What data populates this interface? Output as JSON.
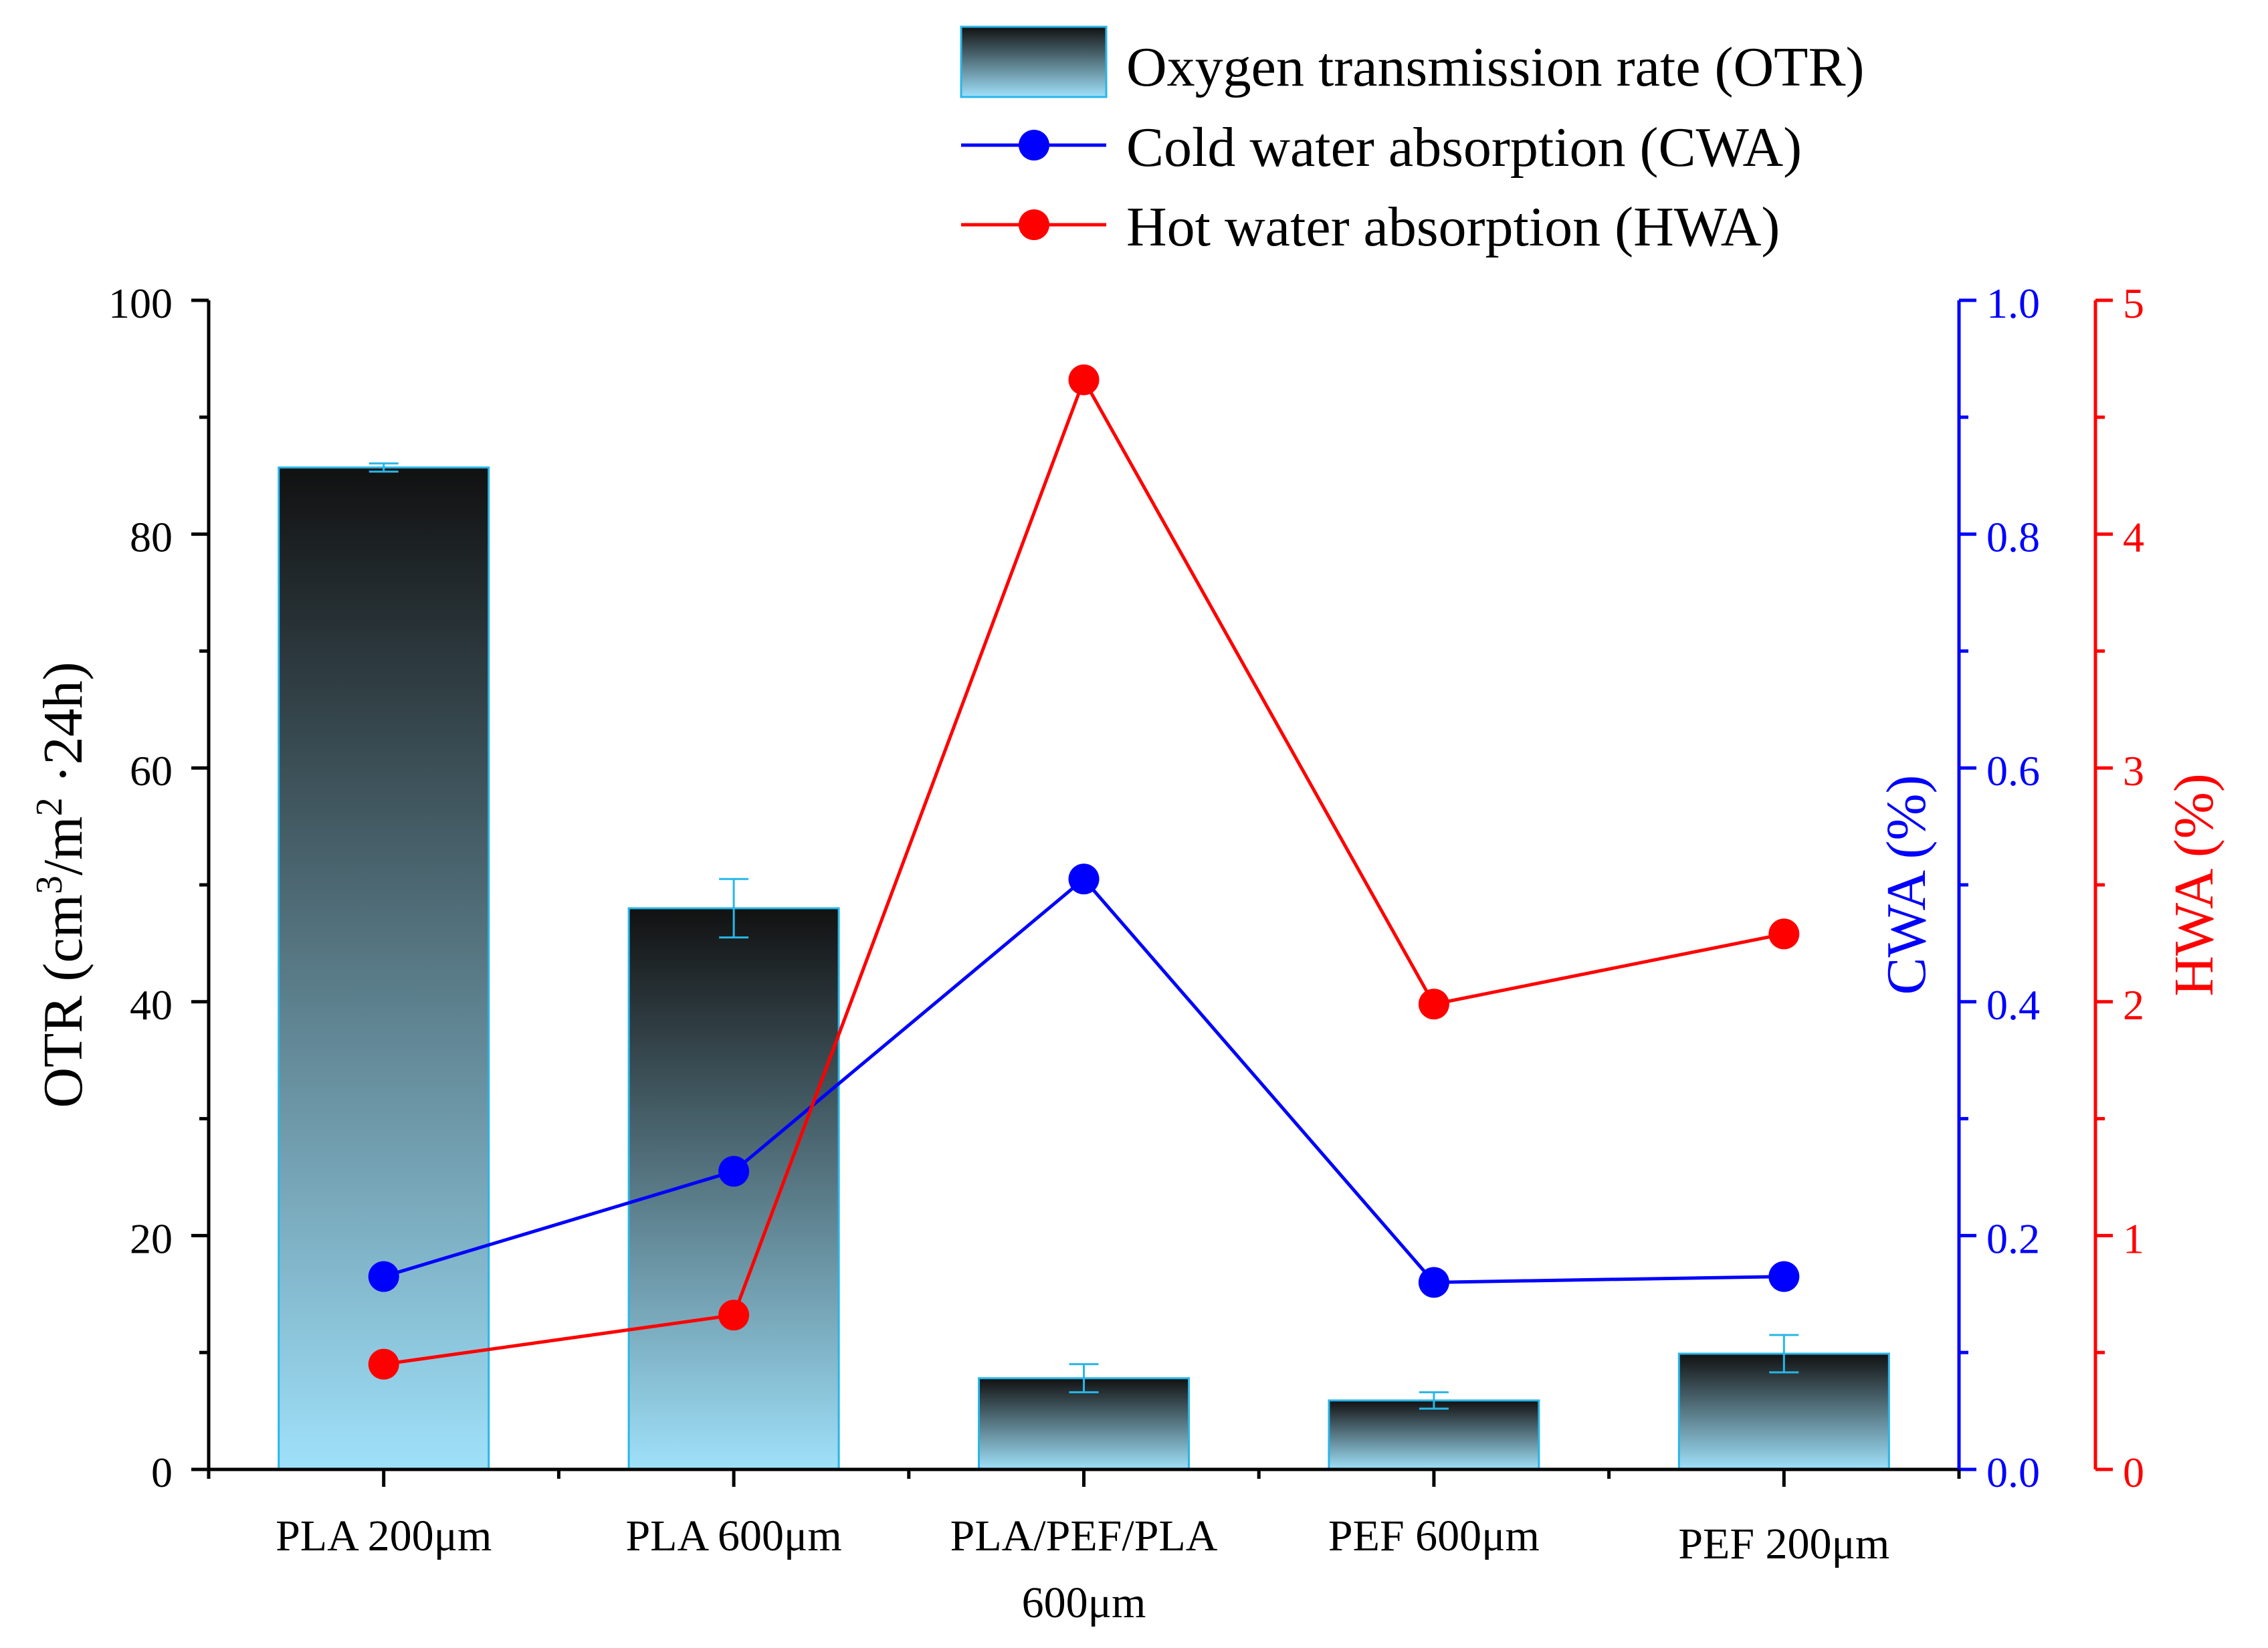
{
  "chart_data": {
    "type": "bar",
    "categories": [
      "PLA 200μm",
      "PLA 600μm",
      "PLA/PEF/PLA 600μm",
      "PEF 600μm",
      "PEF 200μm"
    ],
    "category_lines": [
      [
        "PLA 200μm"
      ],
      [
        "PLA 600μm"
      ],
      [
        "PLA/PEF/PLA",
        "600μm"
      ],
      [
        "PEF 600μm"
      ],
      [
        "PEF 200μm"
      ]
    ],
    "series": [
      {
        "name": "Oxygen transmission rate (OTR)",
        "type": "bar",
        "axis": "left",
        "values": [
          85.7,
          48.0,
          7.8,
          5.9,
          9.9
        ],
        "error": [
          0.35,
          2.5,
          1.2,
          0.7,
          1.6
        ]
      },
      {
        "name": "Cold water absorption (CWA)",
        "type": "line",
        "axis": "right1",
        "values": [
          0.165,
          0.255,
          0.505,
          0.16,
          0.165
        ]
      },
      {
        "name": "Hot water absorption (HWA)",
        "type": "line",
        "axis": "right2",
        "values": [
          0.45,
          0.66,
          4.66,
          1.99,
          2.29
        ]
      }
    ],
    "axes": {
      "left": {
        "label_main": "OTR (cm",
        "label_sup1": "3",
        "label_mid": "/m",
        "label_sup2": "2",
        "label_end": " ·24h)",
        "min": 0,
        "max": 100,
        "ticks": [
          "0",
          "20",
          "40",
          "60",
          "80",
          "100"
        ]
      },
      "right1": {
        "label": "CWA (%)",
        "min": 0,
        "max": 1.0,
        "ticks": [
          "0.0",
          "0.2",
          "0.4",
          "0.6",
          "0.8",
          "1.0"
        ]
      },
      "right2": {
        "label": "HWA (%)",
        "min": 0,
        "max": 5,
        "ticks": [
          "0",
          "1",
          "2",
          "3",
          "4",
          "5"
        ]
      }
    },
    "legend": {
      "position": "top-right"
    }
  },
  "colors": {
    "bar_top": "#111111",
    "bar_bottom": "#9fe1fa",
    "bar_edge": "#29b6e8",
    "cwa": "#0000ff",
    "hwa": "#ff0000",
    "axis": "#000000"
  }
}
